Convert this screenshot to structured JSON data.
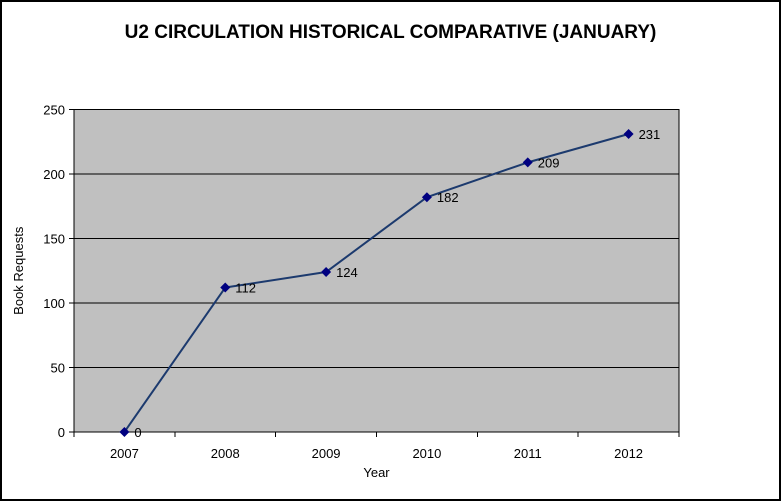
{
  "chart_data": {
    "type": "line",
    "title": "U2 CIRCULATION HISTORICAL COMPARATIVE (JANUARY)",
    "xlabel": "Year",
    "ylabel": "Book Requests",
    "categories": [
      "2007",
      "2008",
      "2009",
      "2010",
      "2011",
      "2012"
    ],
    "series": [
      {
        "name": "Book Requests",
        "values": [
          0,
          112,
          124,
          182,
          209,
          231
        ]
      }
    ],
    "data_labels": [
      "0",
      "112",
      "124",
      "182",
      "209",
      "231"
    ],
    "ylim": [
      0,
      250
    ],
    "yticks": [
      0,
      50,
      100,
      150,
      200,
      250
    ],
    "ytick_labels": [
      "0",
      "50",
      "100",
      "150",
      "200",
      "250"
    ],
    "grid": true,
    "legend": "none",
    "marker_shape": "diamond",
    "colors": {
      "line": "#1c3a6e",
      "marker": "#000080",
      "plot_bg": "#c0c0c0",
      "chart_bg": "#ffffff",
      "gridline": "#000000",
      "text": "#000000",
      "frame_border": "#000000"
    }
  }
}
